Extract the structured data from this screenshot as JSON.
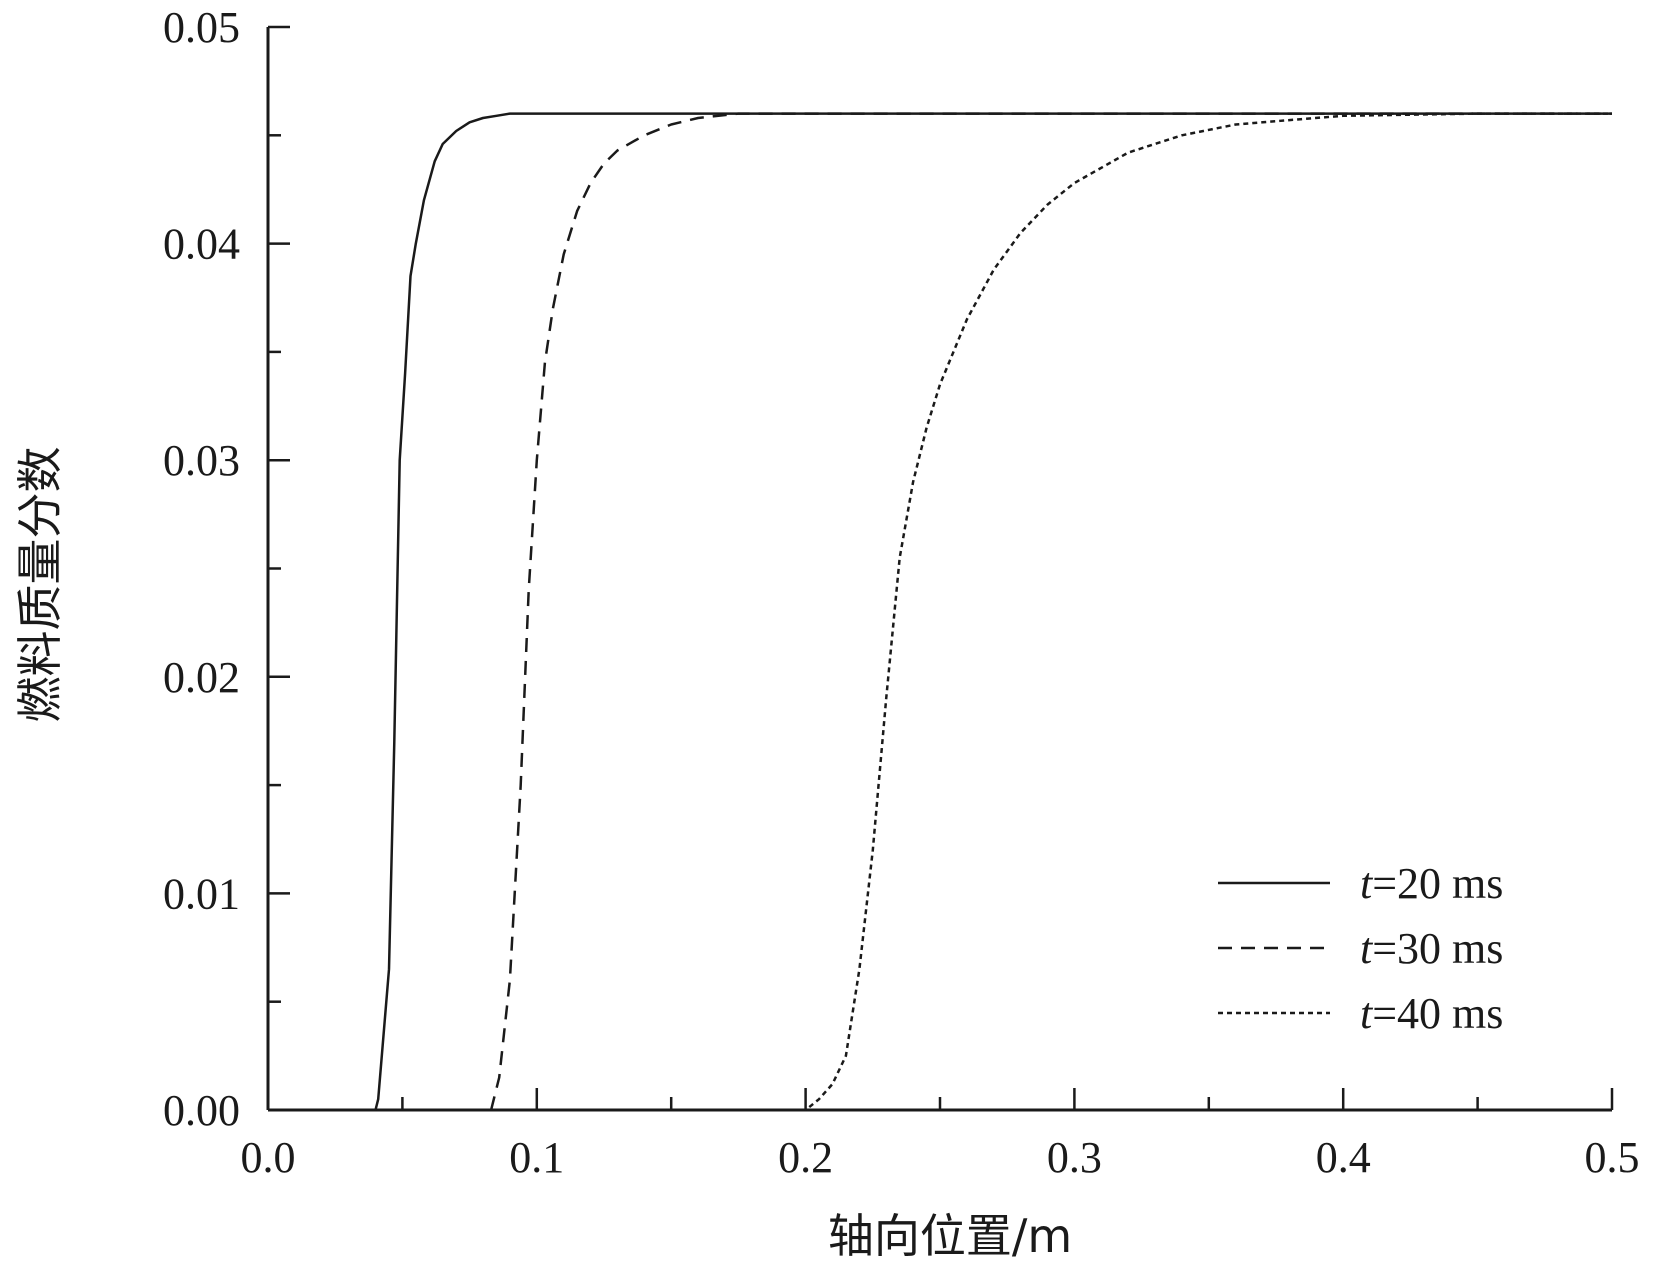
{
  "chart_data": {
    "type": "line",
    "title": "",
    "xlabel": "轴向位置/m",
    "ylabel": "燃料质量分数",
    "xlim": [
      0.0,
      0.5
    ],
    "ylim": [
      0.0,
      0.05
    ],
    "x_ticks": [
      "0.0",
      "0.1",
      "0.2",
      "0.3",
      "0.4",
      "0.5"
    ],
    "y_ticks": [
      "0.00",
      "0.01",
      "0.02",
      "0.03",
      "0.04",
      "0.05"
    ],
    "grid": false,
    "legend_position": "bottom-right",
    "series": [
      {
        "name": "t=20 ms",
        "legend_italic": "t",
        "legend_rest": "=20 ms",
        "dash": "solid",
        "x": [
          0.0,
          0.04,
          0.041,
          0.045,
          0.047,
          0.049,
          0.051,
          0.053,
          0.055,
          0.058,
          0.062,
          0.065,
          0.07,
          0.075,
          0.08,
          0.085,
          0.09,
          0.1,
          0.2,
          0.3,
          0.4,
          0.5
        ],
        "y": [
          0.0,
          0.0,
          0.0005,
          0.0065,
          0.017,
          0.03,
          0.034,
          0.0385,
          0.04,
          0.042,
          0.0438,
          0.0446,
          0.0452,
          0.0456,
          0.0458,
          0.0459,
          0.046,
          0.046,
          0.046,
          0.046,
          0.046,
          0.046
        ]
      },
      {
        "name": "t=30 ms",
        "legend_italic": "t",
        "legend_rest": "=30 ms",
        "dash": "dashed",
        "x": [
          0.083,
          0.086,
          0.09,
          0.094,
          0.097,
          0.1,
          0.103,
          0.106,
          0.11,
          0.115,
          0.12,
          0.125,
          0.13,
          0.14,
          0.15,
          0.16,
          0.175,
          0.5
        ],
        "y": [
          0.0,
          0.0015,
          0.006,
          0.015,
          0.024,
          0.03,
          0.0345,
          0.037,
          0.0395,
          0.0415,
          0.0428,
          0.0437,
          0.0443,
          0.045,
          0.0455,
          0.0458,
          0.046,
          0.046
        ]
      },
      {
        "name": "t=40 ms",
        "legend_italic": "t",
        "legend_rest": "=40 ms",
        "dash": "dotted",
        "x": [
          0.185,
          0.2,
          0.205,
          0.21,
          0.215,
          0.22,
          0.225,
          0.23,
          0.235,
          0.24,
          0.245,
          0.25,
          0.26,
          0.27,
          0.28,
          0.29,
          0.3,
          0.32,
          0.34,
          0.36,
          0.38,
          0.4,
          0.45,
          0.5
        ],
        "y": [
          0.0,
          0.0,
          0.0005,
          0.0012,
          0.0025,
          0.0065,
          0.012,
          0.019,
          0.0255,
          0.029,
          0.0315,
          0.0335,
          0.0365,
          0.0388,
          0.0405,
          0.0418,
          0.0428,
          0.0442,
          0.045,
          0.0455,
          0.0457,
          0.0459,
          0.046,
          0.046
        ]
      }
    ]
  }
}
